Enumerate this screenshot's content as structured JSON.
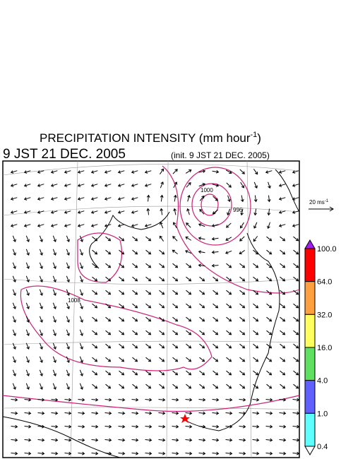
{
  "title": {
    "text": "PRECIPITATION INTENSITY (mm hour",
    "superscript": "-1",
    "close": ")"
  },
  "valid_time": "9 JST 21 DEC. 2005",
  "init_time": "(init. 9 JST 21 DEC. 2005)",
  "reference_vector": {
    "text": "20 ms",
    "superscript": "-1"
  },
  "contour_labels": [
    "1000",
    "996",
    "1008"
  ],
  "colorbar": {
    "levels": [
      {
        "value": 100,
        "label": "100.0"
      },
      {
        "value": 64,
        "label": "64.0"
      },
      {
        "value": 32,
        "label": "32.0"
      },
      {
        "value": 16,
        "label": "16.0"
      },
      {
        "value": 4,
        "label": "4.0"
      },
      {
        "value": 1,
        "label": "1.0"
      },
      {
        "value": 0.4,
        "label": "0.4"
      }
    ],
    "colors": [
      "#ff0000",
      "#ffa040",
      "#ffff60",
      "#60e060",
      "#6060ff",
      "#60ffff"
    ],
    "over_color": "#a020f0",
    "under_color": "#ffffff"
  }
}
